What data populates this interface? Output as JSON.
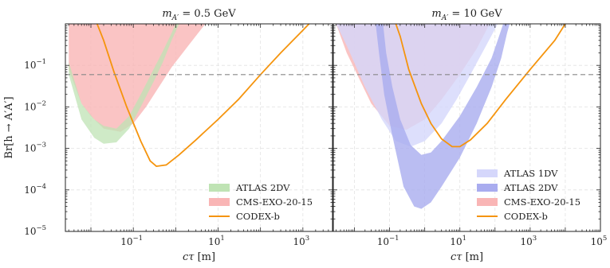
{
  "chart_data": [
    {
      "type": "area",
      "title": "m_{A'} = 0.5 GeV",
      "title_parts": [
        "m",
        "A′",
        " = 0.5 GeV"
      ],
      "xlabel": "cτ [m]",
      "ylabel": "Br[h → A′A′]",
      "xscale": "log",
      "yscale": "log",
      "xlim": [
        0.0025,
        5000
      ],
      "ylim": [
        1e-05,
        1
      ],
      "grid": true,
      "legend_position": "bottom-right",
      "x_ticks": [
        {
          "base": "10",
          "exp": "−1"
        },
        {
          "base": "10",
          "exp": "1"
        },
        {
          "base": "10",
          "exp": "3"
        }
      ],
      "reference_line": {
        "y": 0.06,
        "style": "dashed",
        "color": "#888888"
      },
      "series": [
        {
          "name": "ATLAS 2DV",
          "kind": "band",
          "color": "#bfe3b4",
          "lower": [
            [
              0.003,
              0.06
            ],
            [
              0.006,
              0.005
            ],
            [
              0.012,
              0.0018
            ],
            [
              0.02,
              0.0013
            ],
            [
              0.04,
              0.0014
            ],
            [
              0.08,
              0.003
            ],
            [
              0.15,
              0.01
            ],
            [
              0.3,
              0.04
            ],
            [
              0.5,
              0.12
            ],
            [
              0.8,
              0.4
            ],
            [
              1.2,
              1
            ]
          ],
          "upper": [
            [
              0.003,
              0.12
            ],
            [
              0.006,
              0.012
            ],
            [
              0.012,
              0.005
            ],
            [
              0.02,
              0.0035
            ],
            [
              0.04,
              0.003
            ],
            [
              0.08,
              0.006
            ],
            [
              0.15,
              0.02
            ],
            [
              0.3,
              0.08
            ],
            [
              0.5,
              0.22
            ],
            [
              0.8,
              0.6
            ],
            [
              1.0,
              1
            ]
          ]
        },
        {
          "name": "CMS-EXO-20-15",
          "kind": "band",
          "color": "#f9b5b5",
          "lower": [
            [
              0.003,
              0.08
            ],
            [
              0.006,
              0.012
            ],
            [
              0.01,
              0.006
            ],
            [
              0.02,
              0.003
            ],
            [
              0.05,
              0.0025
            ],
            [
              0.1,
              0.004
            ],
            [
              0.2,
              0.01
            ],
            [
              0.4,
              0.03
            ],
            [
              0.8,
              0.09
            ],
            [
              2,
              0.3
            ],
            [
              5,
              1
            ]
          ],
          "upper": [
            [
              0.003,
              1
            ],
            [
              5,
              1
            ]
          ]
        },
        {
          "name": "CODEX-b",
          "kind": "line",
          "color": "#f5940d",
          "points": [
            [
              0.014,
              1
            ],
            [
              0.02,
              0.4
            ],
            [
              0.035,
              0.07
            ],
            [
              0.07,
              0.01
            ],
            [
              0.15,
              0.0015
            ],
            [
              0.25,
              0.0005
            ],
            [
              0.35,
              0.00037
            ],
            [
              0.6,
              0.0004
            ],
            [
              1.2,
              0.0007
            ],
            [
              3,
              0.0016
            ],
            [
              10,
              0.005
            ],
            [
              30,
              0.015
            ],
            [
              100,
              0.06
            ],
            [
              300,
              0.2
            ],
            [
              1000,
              0.7
            ],
            [
              1400,
              1
            ]
          ]
        }
      ]
    },
    {
      "type": "area",
      "title": "m_{A'} = 10 GeV",
      "title_parts": [
        "m",
        "A′",
        " = 10 GeV"
      ],
      "xlabel": "cτ [m]",
      "ylabel": "",
      "xscale": "log",
      "yscale": "log",
      "xlim": [
        0.0025,
        100000
      ],
      "ylim": [
        1e-05,
        1
      ],
      "grid": true,
      "legend_position": "bottom-right",
      "x_ticks": [
        {
          "base": "10",
          "exp": "−1"
        },
        {
          "base": "10",
          "exp": "1"
        },
        {
          "base": "10",
          "exp": "3"
        },
        {
          "base": "10",
          "exp": "5"
        }
      ],
      "reference_line": {
        "y": 0.06,
        "style": "dashed",
        "color": "#888888"
      },
      "series": [
        {
          "name": "ATLAS 1DV",
          "kind": "band",
          "color": "#d5d7fb",
          "lower": [
            [
              0.003,
              1
            ],
            [
              0.006,
              0.3
            ],
            [
              0.02,
              0.03
            ],
            [
              0.06,
              0.005
            ],
            [
              0.15,
              0.0015
            ],
            [
              0.4,
              0.0011
            ],
            [
              1,
              0.0015
            ],
            [
              3,
              0.004
            ],
            [
              8,
              0.015
            ],
            [
              20,
              0.06
            ],
            [
              50,
              0.25
            ],
            [
              120,
              1
            ]
          ],
          "upper": [
            [
              0.003,
              1
            ],
            [
              120,
              1
            ]
          ]
        },
        {
          "name": "ATLAS 2DV",
          "kind": "band",
          "color": "#a9acef",
          "lower": [
            [
              0.04,
              1
            ],
            [
              0.05,
              0.2
            ],
            [
              0.07,
              0.02
            ],
            [
              0.12,
              0.002
            ],
            [
              0.25,
              0.00012
            ],
            [
              0.5,
              4e-05
            ],
            [
              0.8,
              3.5e-05
            ],
            [
              1.5,
              5e-05
            ],
            [
              3,
              0.00012
            ],
            [
              10,
              0.0006
            ],
            [
              30,
              0.004
            ],
            [
              80,
              0.03
            ],
            [
              150,
              0.15
            ],
            [
              220,
              0.6
            ],
            [
              260,
              1
            ]
          ],
          "upper": [
            [
              0.065,
              1
            ],
            [
              0.08,
              0.2
            ],
            [
              0.12,
              0.03
            ],
            [
              0.2,
              0.005
            ],
            [
              0.4,
              0.0012
            ],
            [
              0.8,
              0.0007
            ],
            [
              1.5,
              0.0008
            ],
            [
              3,
              0.0015
            ],
            [
              10,
              0.006
            ],
            [
              30,
              0.03
            ],
            [
              80,
              0.15
            ],
            [
              130,
              0.5
            ],
            [
              170,
              1
            ]
          ]
        },
        {
          "name": "CMS-EXO-20-15",
          "kind": "band",
          "color": "#f9b5b5",
          "lower": [
            [
              0.003,
              1
            ],
            [
              0.006,
              0.2
            ],
            [
              0.03,
              0.012
            ],
            [
              0.1,
              0.0035
            ],
            [
              0.3,
              0.0028
            ],
            [
              1,
              0.005
            ],
            [
              3,
              0.015
            ],
            [
              10,
              0.06
            ],
            [
              30,
              0.25
            ],
            [
              70,
              1
            ]
          ],
          "upper": [
            [
              0.003,
              1
            ],
            [
              70,
              1
            ]
          ]
        },
        {
          "name": "CODEX-b",
          "kind": "line",
          "color": "#f5940d",
          "points": [
            [
              0.15,
              1
            ],
            [
              0.2,
              0.5
            ],
            [
              0.35,
              0.08
            ],
            [
              0.8,
              0.012
            ],
            [
              1.5,
              0.004
            ],
            [
              3,
              0.0017
            ],
            [
              6,
              0.0011
            ],
            [
              10,
              0.0011
            ],
            [
              20,
              0.0016
            ],
            [
              60,
              0.004
            ],
            [
              200,
              0.015
            ],
            [
              1000,
              0.08
            ],
            [
              5000,
              0.4
            ],
            [
              10000,
              1
            ]
          ]
        }
      ]
    }
  ],
  "shared_y_ticks": [
    {
      "base": "10",
      "exp": "−1"
    },
    {
      "base": "10",
      "exp": "−2"
    },
    {
      "base": "10",
      "exp": "−3"
    },
    {
      "base": "10",
      "exp": "−4"
    },
    {
      "base": "10",
      "exp": "−5"
    }
  ],
  "legend_order": [
    [
      "ATLAS 2DV",
      "CMS-EXO-20-15",
      "CODEX-b"
    ],
    [
      "ATLAS 1DV",
      "ATLAS 2DV",
      "CMS-EXO-20-15",
      "CODEX-b"
    ]
  ]
}
